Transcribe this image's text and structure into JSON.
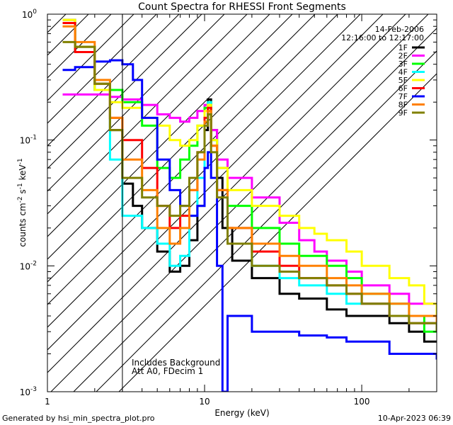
{
  "chart_data": {
    "type": "line",
    "title": "Count Spectra for RHESSI Front Segments",
    "xlabel": "Energy (keV)",
    "ylabel_parts": {
      "pre": "counts cm",
      "exp1": "-2",
      "mid1": " s",
      "exp2": "-1",
      "mid2": " keV",
      "exp3": "-1"
    },
    "x_scale": "log",
    "y_scale": "log",
    "xlim": [
      1,
      300
    ],
    "ylim": [
      0.001,
      1
    ],
    "x_ticks": [
      {
        "value": 1,
        "label": "1"
      },
      {
        "value": 10,
        "label": "10"
      },
      {
        "value": 100,
        "label": "100"
      }
    ],
    "y_ticks": [
      {
        "value": 0.001,
        "base": "10",
        "exp": "-3"
      },
      {
        "value": 0.01,
        "base": "10",
        "exp": "-2"
      },
      {
        "value": 0.1,
        "base": "10",
        "exp": "-1"
      },
      {
        "value": 1,
        "base": "10",
        "exp": "0"
      }
    ],
    "date": "14-Feb-2006",
    "time_range": "12:16:00 to 12:17:00",
    "hatched_below_keV": 3,
    "notes": [
      "Includes Background",
      "Att A0, FDecim 1"
    ],
    "series": [
      {
        "name": "1F",
        "color": "#000000",
        "points": [
          [
            1.25,
            0.9
          ],
          [
            1.5,
            0.55
          ],
          [
            2.0,
            0.25
          ],
          [
            2.5,
            0.12
          ],
          [
            3.0,
            0.045
          ],
          [
            3.5,
            0.03
          ],
          [
            4.0,
            0.02
          ],
          [
            5.0,
            0.013
          ],
          [
            6.0,
            0.009
          ],
          [
            7.0,
            0.01
          ],
          [
            8.0,
            0.016
          ],
          [
            9.0,
            0.03
          ],
          [
            10.0,
            0.12
          ],
          [
            10.5,
            0.21
          ],
          [
            11.0,
            0.12
          ],
          [
            12.0,
            0.05
          ],
          [
            13.0,
            0.02
          ],
          [
            15.0,
            0.011
          ],
          [
            20.0,
            0.008
          ],
          [
            30.0,
            0.006
          ],
          [
            40.0,
            0.0055
          ],
          [
            60.0,
            0.0045
          ],
          [
            80.0,
            0.004
          ],
          [
            100.0,
            0.004
          ],
          [
            150.0,
            0.0035
          ],
          [
            200.0,
            0.003
          ],
          [
            250.0,
            0.0025
          ],
          [
            300.0,
            0.0025
          ]
        ]
      },
      {
        "name": "2F",
        "color": "#ff00ff",
        "points": [
          [
            1.25,
            0.23
          ],
          [
            1.5,
            0.23
          ],
          [
            2.0,
            0.23
          ],
          [
            2.5,
            0.22
          ],
          [
            3.0,
            0.21
          ],
          [
            4.0,
            0.19
          ],
          [
            5.0,
            0.16
          ],
          [
            6.0,
            0.15
          ],
          [
            7.0,
            0.14
          ],
          [
            8.0,
            0.15
          ],
          [
            9.0,
            0.17
          ],
          [
            10.0,
            0.19
          ],
          [
            10.5,
            0.2
          ],
          [
            11.0,
            0.12
          ],
          [
            12.0,
            0.07
          ],
          [
            14.0,
            0.05
          ],
          [
            20.0,
            0.035
          ],
          [
            30.0,
            0.022
          ],
          [
            40.0,
            0.016
          ],
          [
            50.0,
            0.013
          ],
          [
            60.0,
            0.011
          ],
          [
            80.0,
            0.009
          ],
          [
            100.0,
            0.007
          ],
          [
            150.0,
            0.006
          ],
          [
            200.0,
            0.005
          ],
          [
            300.0,
            0.0045
          ]
        ]
      },
      {
        "name": "3F",
        "color": "#00ff00",
        "points": [
          [
            1.25,
            0.85
          ],
          [
            1.5,
            0.5
          ],
          [
            2.0,
            0.28
          ],
          [
            2.5,
            0.25
          ],
          [
            3.0,
            0.2
          ],
          [
            4.0,
            0.13
          ],
          [
            5.0,
            0.06
          ],
          [
            6.0,
            0.05
          ],
          [
            7.0,
            0.07
          ],
          [
            8.0,
            0.09
          ],
          [
            9.0,
            0.13
          ],
          [
            10.0,
            0.18
          ],
          [
            10.5,
            0.2
          ],
          [
            11.0,
            0.1
          ],
          [
            12.0,
            0.06
          ],
          [
            14.0,
            0.03
          ],
          [
            20.0,
            0.02
          ],
          [
            30.0,
            0.015
          ],
          [
            40.0,
            0.012
          ],
          [
            60.0,
            0.01
          ],
          [
            80.0,
            0.008
          ],
          [
            100.0,
            0.006
          ],
          [
            150.0,
            0.005
          ],
          [
            200.0,
            0.004
          ],
          [
            250.0,
            0.003
          ],
          [
            300.0,
            0.003
          ]
        ]
      },
      {
        "name": "4F",
        "color": "#00ffff",
        "points": [
          [
            1.25,
            0.85
          ],
          [
            1.5,
            0.5
          ],
          [
            2.0,
            0.25
          ],
          [
            2.5,
            0.07
          ],
          [
            3.0,
            0.025
          ],
          [
            4.0,
            0.02
          ],
          [
            5.0,
            0.015
          ],
          [
            6.0,
            0.01
          ],
          [
            7.0,
            0.012
          ],
          [
            8.0,
            0.025
          ],
          [
            9.0,
            0.05
          ],
          [
            10.0,
            0.15
          ],
          [
            10.5,
            0.2
          ],
          [
            11.0,
            0.1
          ],
          [
            12.0,
            0.04
          ],
          [
            14.0,
            0.015
          ],
          [
            20.0,
            0.01
          ],
          [
            30.0,
            0.008
          ],
          [
            40.0,
            0.007
          ],
          [
            60.0,
            0.006
          ],
          [
            80.0,
            0.005
          ],
          [
            100.0,
            0.005
          ],
          [
            150.0,
            0.004
          ],
          [
            200.0,
            0.0035
          ],
          [
            300.0,
            0.003
          ]
        ]
      },
      {
        "name": "5F",
        "color": "#ffff00",
        "points": [
          [
            1.25,
            0.9
          ],
          [
            1.5,
            0.55
          ],
          [
            2.0,
            0.25
          ],
          [
            2.5,
            0.2
          ],
          [
            3.0,
            0.18
          ],
          [
            4.0,
            0.15
          ],
          [
            5.0,
            0.13
          ],
          [
            6.0,
            0.1
          ],
          [
            7.0,
            0.09
          ],
          [
            8.0,
            0.1
          ],
          [
            9.0,
            0.13
          ],
          [
            10.0,
            0.17
          ],
          [
            10.5,
            0.19
          ],
          [
            11.0,
            0.1
          ],
          [
            12.0,
            0.06
          ],
          [
            14.0,
            0.04
          ],
          [
            20.0,
            0.03
          ],
          [
            30.0,
            0.025
          ],
          [
            40.0,
            0.02
          ],
          [
            50.0,
            0.018
          ],
          [
            60.0,
            0.016
          ],
          [
            80.0,
            0.013
          ],
          [
            100.0,
            0.01
          ],
          [
            150.0,
            0.008
          ],
          [
            200.0,
            0.007
          ],
          [
            250.0,
            0.005
          ],
          [
            300.0,
            0.004
          ]
        ]
      },
      {
        "name": "6F",
        "color": "#ff0000",
        "points": [
          [
            1.25,
            0.85
          ],
          [
            1.5,
            0.5
          ],
          [
            2.0,
            0.28
          ],
          [
            2.5,
            0.15
          ],
          [
            3.0,
            0.1
          ],
          [
            4.0,
            0.06
          ],
          [
            5.0,
            0.03
          ],
          [
            6.0,
            0.02
          ],
          [
            7.0,
            0.025
          ],
          [
            8.0,
            0.04
          ],
          [
            9.0,
            0.08
          ],
          [
            10.0,
            0.15
          ],
          [
            10.5,
            0.18
          ],
          [
            11.0,
            0.09
          ],
          [
            12.0,
            0.04
          ],
          [
            14.0,
            0.02
          ],
          [
            20.0,
            0.013
          ],
          [
            30.0,
            0.01
          ],
          [
            40.0,
            0.008
          ],
          [
            60.0,
            0.007
          ],
          [
            80.0,
            0.006
          ],
          [
            100.0,
            0.005
          ],
          [
            150.0,
            0.004
          ],
          [
            200.0,
            0.0035
          ],
          [
            300.0,
            0.003
          ]
        ]
      },
      {
        "name": "7F",
        "color": "#0000ff",
        "points": [
          [
            1.25,
            0.36
          ],
          [
            1.5,
            0.38
          ],
          [
            2.0,
            0.42
          ],
          [
            2.5,
            0.43
          ],
          [
            3.0,
            0.4
          ],
          [
            3.5,
            0.3
          ],
          [
            4.0,
            0.15
          ],
          [
            5.0,
            0.07
          ],
          [
            6.0,
            0.04
          ],
          [
            7.0,
            0.03
          ],
          [
            8.0,
            0.025
          ],
          [
            9.0,
            0.03
          ],
          [
            10.0,
            0.06
          ],
          [
            10.5,
            0.08
          ],
          [
            11.0,
            0.05
          ],
          [
            12.0,
            0.01
          ],
          [
            13.0,
            0.001
          ],
          [
            14.0,
            0.004
          ],
          [
            20.0,
            0.003
          ],
          [
            30.0,
            0.003
          ],
          [
            40.0,
            0.0028
          ],
          [
            60.0,
            0.0027
          ],
          [
            80.0,
            0.0025
          ],
          [
            100.0,
            0.0025
          ],
          [
            150.0,
            0.002
          ],
          [
            200.0,
            0.002
          ],
          [
            300.0,
            0.0018
          ]
        ]
      },
      {
        "name": "8F",
        "color": "#ff8000",
        "points": [
          [
            1.25,
            0.8
          ],
          [
            1.5,
            0.6
          ],
          [
            2.0,
            0.3
          ],
          [
            2.5,
            0.15
          ],
          [
            3.0,
            0.07
          ],
          [
            4.0,
            0.04
          ],
          [
            5.0,
            0.02
          ],
          [
            6.0,
            0.015
          ],
          [
            7.0,
            0.02
          ],
          [
            8.0,
            0.04
          ],
          [
            9.0,
            0.07
          ],
          [
            10.0,
            0.14
          ],
          [
            10.5,
            0.17
          ],
          [
            11.0,
            0.09
          ],
          [
            12.0,
            0.04
          ],
          [
            14.0,
            0.02
          ],
          [
            20.0,
            0.015
          ],
          [
            30.0,
            0.012
          ],
          [
            40.0,
            0.01
          ],
          [
            60.0,
            0.008
          ],
          [
            80.0,
            0.007
          ],
          [
            100.0,
            0.006
          ],
          [
            150.0,
            0.005
          ],
          [
            200.0,
            0.004
          ],
          [
            300.0,
            0.0035
          ]
        ]
      },
      {
        "name": "9F",
        "color": "#808000",
        "points": [
          [
            1.25,
            0.6
          ],
          [
            1.5,
            0.55
          ],
          [
            2.0,
            0.28
          ],
          [
            2.5,
            0.12
          ],
          [
            3.0,
            0.05
          ],
          [
            4.0,
            0.035
          ],
          [
            5.0,
            0.03
          ],
          [
            6.0,
            0.025
          ],
          [
            7.0,
            0.03
          ],
          [
            8.0,
            0.05
          ],
          [
            9.0,
            0.08
          ],
          [
            10.0,
            0.13
          ],
          [
            10.5,
            0.16
          ],
          [
            11.0,
            0.08
          ],
          [
            12.0,
            0.035
          ],
          [
            14.0,
            0.015
          ],
          [
            20.0,
            0.01
          ],
          [
            30.0,
            0.009
          ],
          [
            40.0,
            0.008
          ],
          [
            60.0,
            0.007
          ],
          [
            80.0,
            0.006
          ],
          [
            100.0,
            0.005
          ],
          [
            150.0,
            0.004
          ],
          [
            200.0,
            0.0035
          ],
          [
            300.0,
            0.003
          ]
        ]
      }
    ]
  },
  "footer": {
    "generated_by": "Generated by hsi_min_spectra_plot.pro",
    "timestamp": "10-Apr-2023 06:39"
  }
}
